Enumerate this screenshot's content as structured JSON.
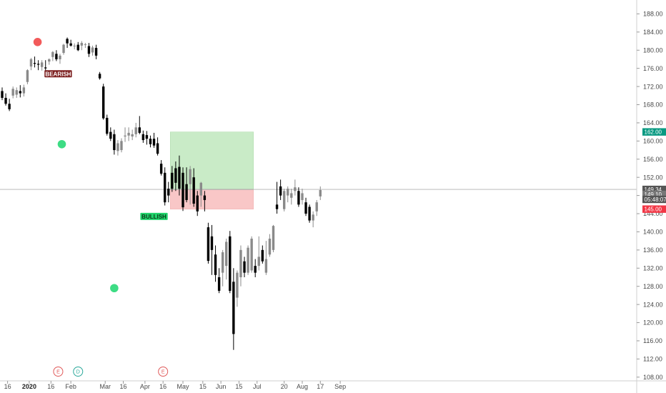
{
  "chart_data": {
    "type": "candlestick",
    "title": "",
    "xlabel": "",
    "ylabel": "",
    "ylim": [
      107,
      190
    ],
    "grid": false,
    "y_ticks": [
      108,
      112,
      116,
      120,
      124,
      128,
      132,
      136,
      140,
      144,
      148,
      152,
      156,
      160,
      164,
      168,
      172,
      176,
      180,
      184,
      188
    ],
    "y_tick_labels": [
      "108.00",
      "112.00",
      "116.00",
      "120.00",
      "124.00",
      "128.00",
      "132.00",
      "136.00",
      "140.00",
      "144.00",
      "148.00",
      "152.00",
      "156.00",
      "160.00",
      "164.00",
      "168.00",
      "172.00",
      "176.00",
      "180.00",
      "184.00",
      "188.00"
    ],
    "x_ticks": [
      {
        "label": "16",
        "bar": 1.5,
        "bold": false
      },
      {
        "label": "2020",
        "bar": 7.5,
        "bold": true
      },
      {
        "label": "16",
        "bar": 13.5,
        "bold": false
      },
      {
        "label": "Feb",
        "bar": 19,
        "bold": false
      },
      {
        "label": "Mar",
        "bar": 28.5,
        "bold": false
      },
      {
        "label": "16",
        "bar": 33.5,
        "bold": false
      },
      {
        "label": "Apr",
        "bar": 39.5,
        "bold": false
      },
      {
        "label": "16",
        "bar": 44.5,
        "bold": false
      },
      {
        "label": "May",
        "bar": 50,
        "bold": false
      },
      {
        "label": "15",
        "bar": 55.5,
        "bold": false
      },
      {
        "label": "Jun",
        "bar": 60.5,
        "bold": false
      },
      {
        "label": "15",
        "bar": 65.5,
        "bold": false
      },
      {
        "label": "Jul",
        "bar": 70.5,
        "bold": false
      },
      {
        "label": "20",
        "bar": 78,
        "bold": false
      },
      {
        "label": "Aug",
        "bar": 83,
        "bold": false
      },
      {
        "label": "17",
        "bar": 88,
        "bold": false
      },
      {
        "label": "Sep",
        "bar": 93.5,
        "bold": false
      }
    ],
    "candles": [
      [
        171.0,
        171.8,
        169.0,
        169.5
      ],
      [
        169.5,
        170.5,
        167.8,
        168.2
      ],
      [
        168.2,
        169.3,
        166.6,
        167.0
      ],
      [
        170.0,
        172.0,
        169.4,
        171.5
      ],
      [
        170.2,
        171.8,
        169.5,
        171.2
      ],
      [
        171.0,
        172.3,
        169.6,
        170.5
      ],
      [
        170.5,
        172.4,
        169.8,
        171.8
      ],
      [
        173.0,
        175.8,
        172.5,
        175.6
      ],
      [
        176.4,
        178.3,
        175.6,
        178.0
      ],
      [
        177.2,
        178.6,
        176.2,
        177.0
      ],
      [
        177.0,
        177.8,
        175.6,
        176.8
      ],
      [
        176.3,
        177.8,
        175.5,
        177.3
      ],
      [
        176.2,
        177.8,
        175.3,
        176.0
      ],
      [
        177.5,
        178.2,
        176.8,
        178.0
      ],
      [
        178.5,
        179.8,
        177.6,
        179.6
      ],
      [
        179.2,
        180.0,
        177.6,
        178.0
      ],
      [
        178.0,
        179.2,
        177.0,
        178.8
      ],
      [
        179.4,
        181.4,
        179.0,
        181.2
      ],
      [
        182.5,
        182.8,
        180.5,
        181.5
      ],
      [
        181.5,
        182.3,
        180.8,
        181.0
      ],
      [
        181.0,
        181.5,
        180.2,
        181.0
      ],
      [
        181.2,
        181.8,
        179.8,
        180.0
      ],
      [
        181.0,
        182.0,
        180.0,
        181.6
      ],
      [
        181.3,
        181.6,
        180.5,
        181.3
      ],
      [
        180.9,
        181.6,
        178.5,
        179.2
      ],
      [
        179.5,
        181.0,
        178.8,
        180.6
      ],
      [
        180.5,
        181.2,
        178.0,
        178.8
      ],
      [
        174.8,
        175.2,
        173.5,
        173.8
      ],
      [
        172.0,
        172.6,
        164.7,
        165.0
      ],
      [
        165.1,
        165.8,
        161.2,
        161.6
      ],
      [
        162.0,
        163.0,
        160.0,
        160.5
      ],
      [
        161.5,
        162.5,
        157.0,
        158.0
      ],
      [
        157.8,
        160.2,
        156.8,
        159.5
      ],
      [
        158.0,
        160.6,
        157.5,
        160.0
      ],
      [
        161.0,
        163.0,
        159.8,
        161.2
      ],
      [
        161.2,
        163.0,
        160.0,
        161.8
      ],
      [
        161.0,
        162.5,
        160.2,
        161.5
      ],
      [
        161.5,
        164.0,
        160.8,
        163.0
      ],
      [
        163.0,
        165.5,
        161.5,
        161.8
      ],
      [
        161.5,
        162.3,
        159.6,
        160.2
      ],
      [
        161.3,
        162.2,
        159.2,
        160.5
      ],
      [
        160.5,
        161.2,
        158.6,
        159.3
      ],
      [
        160.5,
        161.8,
        158.5,
        159.0
      ],
      [
        159.5,
        160.8,
        156.8,
        157.2
      ],
      [
        155.0,
        155.8,
        152.4,
        152.8
      ],
      [
        153.0,
        154.2,
        145.8,
        146.5
      ],
      [
        149.5,
        151.0,
        146.5,
        148.0
      ],
      [
        153.0,
        154.5,
        148.8,
        149.5
      ],
      [
        154.0,
        155.5,
        149.0,
        150.8
      ],
      [
        154.3,
        156.8,
        148.0,
        149.5
      ],
      [
        153.0,
        154.2,
        144.6,
        145.4
      ],
      [
        150.5,
        154.2,
        146.5,
        147.0
      ],
      [
        150.5,
        154.5,
        146.0,
        153.8
      ],
      [
        152.0,
        154.0,
        145.5,
        146.2
      ],
      [
        148.0,
        149.0,
        143.5,
        144.5
      ],
      [
        148.0,
        151.0,
        145.5,
        150.8
      ],
      [
        148.0,
        149.0,
        144.5,
        147.0
      ],
      [
        141.0,
        142.0,
        133.0,
        133.6
      ],
      [
        139.0,
        141.5,
        130.5,
        136.0
      ],
      [
        135.0,
        137.0,
        129.0,
        130.5
      ],
      [
        130.0,
        132.0,
        126.5,
        127.0
      ],
      [
        131.0,
        136.0,
        128.0,
        135.5
      ],
      [
        132.5,
        138.5,
        129.5,
        137.8
      ],
      [
        139.0,
        140.2,
        126.5,
        127.0
      ],
      [
        129.0,
        132.0,
        114.0,
        117.5
      ],
      [
        125.5,
        131.5,
        123.5,
        131.0
      ],
      [
        130.0,
        137.0,
        128.0,
        136.0
      ],
      [
        133.5,
        134.5,
        130.0,
        131.0
      ],
      [
        131.0,
        137.0,
        130.5,
        136.5
      ],
      [
        131.5,
        139.0,
        131.0,
        138.5
      ],
      [
        132.5,
        134.0,
        130.0,
        131.0
      ],
      [
        132.5,
        139.0,
        131.5,
        134.5
      ],
      [
        136.0,
        137.0,
        133.0,
        133.5
      ],
      [
        131.0,
        138.0,
        130.5,
        134.0
      ],
      [
        135.0,
        139.5,
        134.5,
        138.5
      ],
      [
        136.0,
        141.5,
        135.5,
        141.3
      ],
      [
        146.0,
        151.0,
        144.0,
        145.0
      ],
      [
        150.0,
        151.5,
        147.0,
        148.0
      ],
      [
        145.0,
        149.5,
        144.5,
        149.0
      ],
      [
        148.0,
        150.0,
        146.5,
        149.5
      ],
      [
        147.5,
        149.5,
        146.0,
        148.5
      ],
      [
        149.0,
        151.5,
        148.0,
        149.8
      ],
      [
        149.0,
        149.8,
        145.5,
        146.0
      ],
      [
        147.0,
        149.5,
        146.0,
        148.5
      ],
      [
        146.5,
        147.5,
        143.5,
        144.0
      ],
      [
        145.5,
        146.0,
        142.0,
        142.5
      ],
      [
        142.5,
        144.5,
        141.0,
        143.8
      ],
      [
        144.5,
        147.0,
        143.5,
        146.5
      ],
      [
        147.8,
        150.0,
        147.0,
        149.2
      ]
    ],
    "current_price": 149.34,
    "position": {
      "entry": 149.34,
      "target": 162.0,
      "stop": 145.0,
      "start_bar": 46.5,
      "end_bar": 69.5
    },
    "price_labels": [
      {
        "price": 162.0,
        "text": "162.00",
        "bg": "#089981"
      },
      {
        "price": 149.34,
        "text": "149.34",
        "bg": "#555555"
      },
      {
        "price": 148.25,
        "text": "149.10",
        "bg": "#777777"
      },
      {
        "price": 147.15,
        "text": "05:48:07",
        "bg": "#555555"
      },
      {
        "price": 145.0,
        "text": "145.00",
        "bg": "#f23645"
      }
    ],
    "signal_dots": [
      {
        "bar": 9.8,
        "price": 181.8,
        "color": "#f25a5a"
      },
      {
        "bar": 16.5,
        "price": 159.3,
        "color": "#3ddc84"
      },
      {
        "bar": 31.0,
        "price": 127.6,
        "color": "#3ddc84"
      }
    ],
    "tags": [
      {
        "text": "BEARISH",
        "bar": 15.5,
        "price": 174.8,
        "bg": "#7b1e1e",
        "fg": "#ffffff"
      },
      {
        "text": "BULLISH",
        "bar": 42.0,
        "price": 143.4,
        "bg": "#1fd36b",
        "fg": "#0a3a18"
      }
    ],
    "events": [
      {
        "letter": "E",
        "bar": 15.5,
        "color": "#e05a5a"
      },
      {
        "letter": "D",
        "bar": 21.0,
        "color": "#2aa89a"
      },
      {
        "letter": "E",
        "bar": 44.5,
        "color": "#e05a5a"
      }
    ],
    "colors": {
      "up": "#8a8a8a",
      "down": "#000000",
      "profit": "#c9ebc7",
      "loss": "#f9c7c7"
    }
  }
}
